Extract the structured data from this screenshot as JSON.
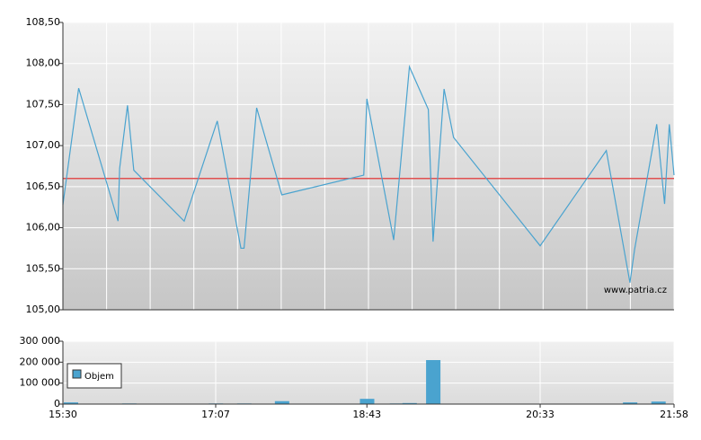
{
  "chart_data": [
    {
      "type": "line",
      "x": [
        "15:30",
        "15:40",
        "16:05",
        "16:06",
        "16:11",
        "16:15",
        "16:47",
        "17:08",
        "17:23",
        "17:25",
        "17:33",
        "17:49",
        "18:41",
        "18:43",
        "19:00",
        "19:10",
        "19:22",
        "19:25",
        "19:32",
        "19:38",
        "20:33",
        "21:15",
        "21:30",
        "21:33",
        "21:47",
        "21:52",
        "21:55",
        "21:58"
      ],
      "values": [
        106.28,
        107.7,
        106.08,
        106.72,
        107.49,
        106.7,
        106.08,
        107.3,
        105.75,
        105.75,
        107.46,
        106.4,
        106.64,
        107.57,
        105.85,
        107.96,
        107.44,
        105.83,
        107.69,
        107.1,
        105.78,
        106.94,
        105.33,
        105.74,
        107.26,
        106.29,
        107.26,
        106.64
      ],
      "color": "#4aa3cf",
      "xlim": [
        "15:30",
        "21:58"
      ],
      "ylim": [
        105,
        108.5
      ],
      "yticks": [
        {
          "value": 105,
          "label": "105,00"
        },
        {
          "value": 105.5,
          "label": "105,50"
        },
        {
          "value": 106,
          "label": "106,00"
        },
        {
          "value": 106.5,
          "label": "106,50"
        },
        {
          "value": 107,
          "label": "107,00"
        },
        {
          "value": 107.5,
          "label": "107,50"
        },
        {
          "value": 108,
          "label": "108,00"
        },
        {
          "value": 108.5,
          "label": "108,50"
        }
      ],
      "reference_line": {
        "value": 106.6,
        "color": "#e05050"
      },
      "annotation": "www.patria.cz",
      "grid": true
    },
    {
      "type": "bar",
      "x": [
        "15:30",
        "16:07",
        "16:42",
        "17:02",
        "17:20",
        "17:44",
        "18:38",
        "18:57",
        "19:05",
        "19:20",
        "21:25",
        "21:43"
      ],
      "series": [
        {
          "name": "Objem",
          "color": "#4aa3cf",
          "values": [
            8000,
            3000,
            2000,
            3000,
            3000,
            14000,
            25000,
            3000,
            5000,
            210000,
            8000,
            12000
          ]
        }
      ],
      "xlim": [
        "15:30",
        "21:58"
      ],
      "xticks": [
        "15:30",
        "17:07",
        "18:43",
        "20:33",
        "21:58"
      ],
      "ylim": [
        0,
        300000
      ],
      "yticks": [
        0,
        {
          "value": 100000,
          "label": "100 000"
        },
        {
          "value": 200000,
          "label": "200 000"
        },
        {
          "value": 300000,
          "label": "300 000"
        }
      ],
      "legend": "upper left",
      "grid": true
    }
  ]
}
